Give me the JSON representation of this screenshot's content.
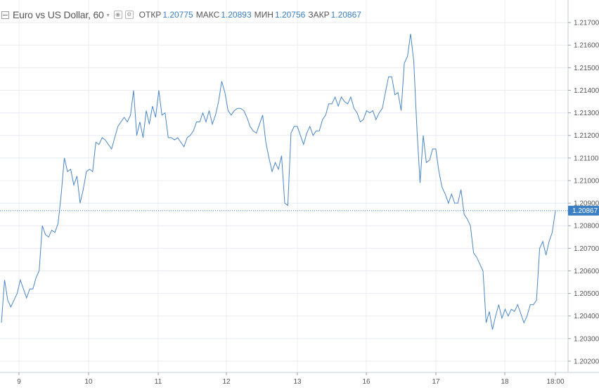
{
  "header": {
    "title": "Euro vs US Dollar, 60",
    "caret": "▾",
    "open_label": "ОТКР",
    "open_value": "1.20775",
    "high_label": "МАКС",
    "high_value": "1.20893",
    "low_label": "МИН",
    "low_value": "1.20756",
    "close_label": "ЗАКР",
    "close_value": "1.20867"
  },
  "colors": {
    "line": "#4a86c8",
    "grid": "#e8ecf1",
    "last_price": "#3a7fc1",
    "text": "#555555"
  },
  "last_price_label": "1.20867",
  "chart_data": {
    "type": "line",
    "title": "Euro vs US Dollar, 60",
    "ylim": [
      1.2015,
      1.218
    ],
    "y_ticks": [
      "1.21700",
      "1.21600",
      "1.21500",
      "1.21400",
      "1.21300",
      "1.21200",
      "1.21100",
      "1.21000",
      "1.20900",
      "1.20800",
      "1.20700",
      "1.20600",
      "1.20500",
      "1.20400",
      "1.20300",
      "1.20200"
    ],
    "x_labels": [
      "9",
      "10",
      "11",
      "12",
      "13",
      "16",
      "17",
      "18",
      "18:00"
    ],
    "last_price": 1.20867,
    "grid": true,
    "series": [
      {
        "values": [
          1.2037,
          1.2056,
          1.2047,
          1.2044,
          1.2047,
          1.205,
          1.2056,
          1.2052,
          1.2048,
          1.2052,
          1.2052,
          1.2057,
          1.206,
          1.208,
          1.2076,
          1.2075,
          1.2078,
          1.2077,
          1.2081,
          1.2094,
          1.211,
          1.2104,
          1.2105,
          1.2098,
          1.2102,
          1.209,
          1.2096,
          1.2104,
          1.2105,
          1.2104,
          1.2117,
          1.2116,
          1.2119,
          1.2118,
          1.2116,
          1.2114,
          1.2119,
          1.2124,
          1.2126,
          1.2128,
          1.2126,
          1.2129,
          1.214,
          1.212,
          1.2126,
          1.2119,
          1.2131,
          1.2125,
          1.2133,
          1.2128,
          1.214,
          1.2129,
          1.213,
          1.2119,
          1.2119,
          1.2118,
          1.2119,
          1.2117,
          1.2115,
          1.2119,
          1.212,
          1.2122,
          1.2126,
          1.2126,
          1.213,
          1.2126,
          1.2131,
          1.2125,
          1.2129,
          1.2135,
          1.2144,
          1.2139,
          1.2131,
          1.2129,
          1.2131,
          1.2132,
          1.2132,
          1.2131,
          1.2128,
          1.2124,
          1.2122,
          1.2121,
          1.2125,
          1.2129,
          1.2117,
          1.211,
          1.2104,
          1.2108,
          1.2105,
          1.2111,
          1.209,
          1.2089,
          1.2121,
          1.2124,
          1.2124,
          1.212,
          1.2116,
          1.2121,
          1.2124,
          1.212,
          1.2122,
          1.2122,
          1.2127,
          1.2129,
          1.2134,
          1.2134,
          1.2137,
          1.2133,
          1.2137,
          1.2135,
          1.2134,
          1.2137,
          1.2132,
          1.213,
          1.2126,
          1.2127,
          1.2131,
          1.213,
          1.2131,
          1.2127,
          1.213,
          1.2132,
          1.2139,
          1.2146,
          1.2146,
          1.2138,
          1.2139,
          1.2131,
          1.2152,
          1.2155,
          1.2165,
          1.2153,
          1.2123,
          1.2099,
          1.212,
          1.2108,
          1.2109,
          1.2114,
          1.2114,
          1.2104,
          1.2097,
          1.2094,
          1.209,
          1.2094,
          1.209,
          1.209,
          1.2096,
          1.2085,
          1.2083,
          1.208,
          1.2068,
          1.2066,
          1.2063,
          1.206,
          1.2037,
          1.2042,
          1.2034,
          1.204,
          1.2045,
          1.2039,
          1.2043,
          1.204,
          1.2043,
          1.2042,
          1.2045,
          1.2041,
          1.2037,
          1.204,
          1.2045,
          1.2045,
          1.2047,
          1.207,
          1.2073,
          1.2067,
          1.2073,
          1.2077,
          1.20867
        ]
      }
    ]
  }
}
